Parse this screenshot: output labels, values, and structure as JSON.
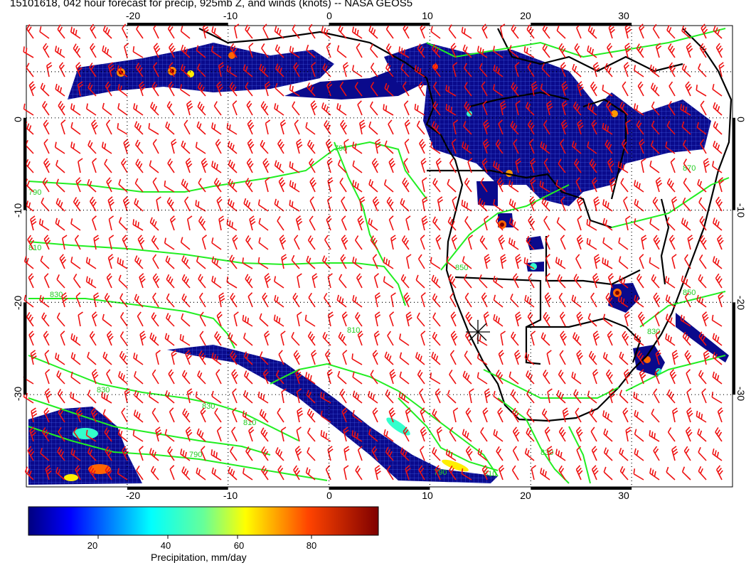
{
  "title": "15101618, 042 hour forecast for precip, 925mb Z, and winds (knots) -- NASA GEOS5",
  "map": {
    "lon_ticks_top": [
      "-20",
      "-10",
      "0",
      "10",
      "20",
      "30"
    ],
    "lon_ticks_bottom": [
      "-20",
      "-10",
      "0",
      "10",
      "20",
      "30"
    ],
    "lat_ticks_left": [
      "0",
      "-10",
      "-20",
      "-30"
    ],
    "lat_ticks_right": [
      "0",
      "-10",
      "-20",
      "-30"
    ],
    "lon_range": [
      -30,
      40
    ],
    "lat_range": [
      -40,
      10
    ],
    "contour_labels": [
      "790",
      "810",
      "830",
      "790",
      "810",
      "830",
      "830",
      "810",
      "790",
      "790",
      "810",
      "830",
      "830",
      "850",
      "850",
      "870"
    ],
    "colors": {
      "precip_low": "#0a0a8c",
      "contour": "#22ee22",
      "wind_barb": "#ee1111",
      "coast": "#000000"
    }
  },
  "colorbar": {
    "ticks": [
      "20",
      "40",
      "60",
      "80"
    ],
    "label": "Precipitation, mm/day",
    "range": [
      0,
      100
    ]
  }
}
